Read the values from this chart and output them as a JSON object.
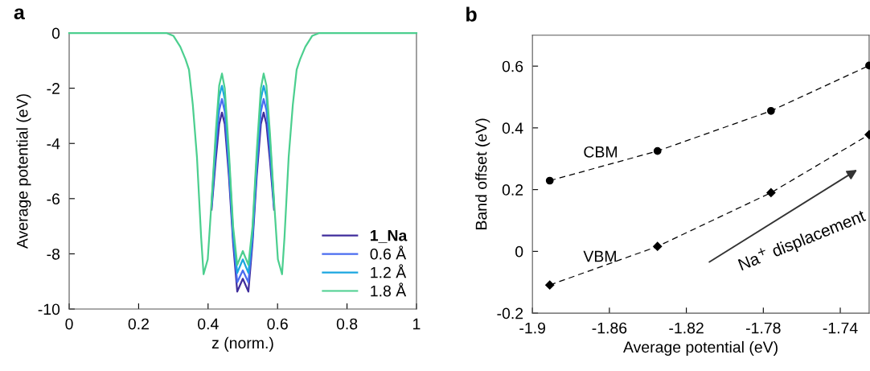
{
  "chart_data": [
    {
      "type": "line",
      "title": "a",
      "xlabel": "z (norm.)",
      "ylabel": "Average potential (eV)",
      "x": [
        0,
        0.28,
        0.3,
        0.32,
        0.335,
        0.345,
        0.356,
        0.368,
        0.38,
        0.387,
        0.399,
        0.41,
        0.422,
        0.432,
        0.44,
        0.448,
        0.46,
        0.472,
        0.484,
        0.5,
        0.516,
        0.528,
        0.54,
        0.552,
        0.56,
        0.568,
        0.578,
        0.59,
        0.601,
        0.613,
        0.62,
        0.632,
        0.644,
        0.655,
        0.665,
        0.68,
        0.7,
        0.72,
        1
      ],
      "series": [
        {
          "name": "1_Na",
          "color": "#3f2d9c",
          "values": [
            null,
            null,
            null,
            null,
            null,
            null,
            null,
            null,
            null,
            null,
            null,
            -6.4,
            -4.6,
            -3.3,
            -2.88,
            -3.3,
            -5.2,
            -7.6,
            -9.37,
            -8.9,
            -9.37,
            -7.6,
            -5.2,
            -3.3,
            -2.88,
            -3.3,
            -4.6,
            -6.4,
            null,
            null,
            null,
            null,
            null,
            null,
            null,
            null,
            null,
            null,
            null
          ]
        },
        {
          "name": "0.6 Å",
          "color": "#4a6cf0",
          "values": [
            null,
            null,
            null,
            null,
            null,
            null,
            null,
            null,
            null,
            null,
            null,
            -6.3,
            -4.2,
            -2.8,
            -2.39,
            -2.85,
            -4.9,
            -7.4,
            -9.03,
            -8.6,
            -9.03,
            -7.4,
            -4.9,
            -2.85,
            -2.39,
            -2.8,
            -4.2,
            -6.3,
            null,
            null,
            null,
            null,
            null,
            null,
            null,
            null,
            null,
            null,
            null
          ]
        },
        {
          "name": "1.2 Å",
          "color": "#1aa6e0",
          "values": [
            null,
            null,
            null,
            null,
            null,
            null,
            null,
            null,
            null,
            null,
            null,
            -6.2,
            -3.9,
            -2.3,
            -1.91,
            -2.4,
            -4.6,
            -7.2,
            -8.69,
            -8.2,
            -8.69,
            -7.2,
            -4.6,
            -2.4,
            -1.91,
            -2.3,
            -3.9,
            -6.2,
            null,
            null,
            null,
            null,
            null,
            null,
            null,
            null,
            null,
            null,
            null
          ]
        },
        {
          "name": "1.8 Å",
          "color": "#4ccf8f",
          "values": [
            0,
            0,
            -0.1,
            -0.5,
            -0.95,
            -1.33,
            -2.6,
            -4.5,
            -7.4,
            -8.74,
            -8.2,
            -6.1,
            -3.6,
            -1.9,
            -1.47,
            -2.0,
            -4.3,
            -7.0,
            -8.4,
            -7.9,
            -8.4,
            -7.0,
            -4.3,
            -2.0,
            -1.47,
            -1.9,
            -3.6,
            -6.1,
            -8.2,
            -8.74,
            -7.4,
            -4.5,
            -2.6,
            -1.33,
            -0.95,
            -0.5,
            -0.1,
            0,
            0
          ]
        }
      ],
      "xlim": [
        0,
        1
      ],
      "ylim": [
        -10,
        0
      ],
      "xticks": [
        0,
        0.2,
        0.4,
        0.6,
        0.8,
        1
      ],
      "yticks": [
        {
          "value": -10,
          "label": "-10"
        },
        {
          "value": -8,
          "label": "-8"
        },
        {
          "value": -6,
          "label": "-6"
        },
        {
          "value": -4,
          "label": "-4"
        },
        {
          "value": -2,
          "label": "-2"
        },
        0
      ],
      "legend": "bottom right",
      "grid": false,
      "marker": "none",
      "line_style": "solid"
    },
    {
      "type": "line",
      "title": "b",
      "xlabel": "Average potential (eV)",
      "ylabel": "Band offset (eV)",
      "series": [
        {
          "name": "CBM",
          "color": "#000000",
          "marker": "circle",
          "x": [
            -1.891,
            -1.835,
            -1.776,
            -1.725
          ],
          "values": [
            0.229,
            0.325,
            0.455,
            0.602
          ]
        },
        {
          "name": "VBM",
          "color": "#000000",
          "marker": "diamond",
          "x": [
            -1.891,
            -1.835,
            -1.776,
            -1.725
          ],
          "values": [
            -0.109,
            0.016,
            0.19,
            0.378
          ]
        }
      ],
      "xlim": [
        -1.9,
        -1.725
      ],
      "ylim": [
        -0.2,
        0.7
      ],
      "xticks": [
        {
          "value": -1.9,
          "label": "-1.9"
        },
        {
          "value": -1.86,
          "label": "-1.86"
        },
        {
          "value": -1.82,
          "label": "-1.82"
        },
        {
          "value": -1.78,
          "label": "-1.78"
        },
        {
          "value": -1.74,
          "label": "-1.74"
        }
      ],
      "yticks": [
        {
          "value": -0.2,
          "label": "-0.2"
        },
        0,
        0.2,
        0.4,
        0.6
      ],
      "annotations": [
        "Na$^{+}$ displacement"
      ],
      "legend": false,
      "grid": false,
      "line_style": "dashed"
    }
  ]
}
